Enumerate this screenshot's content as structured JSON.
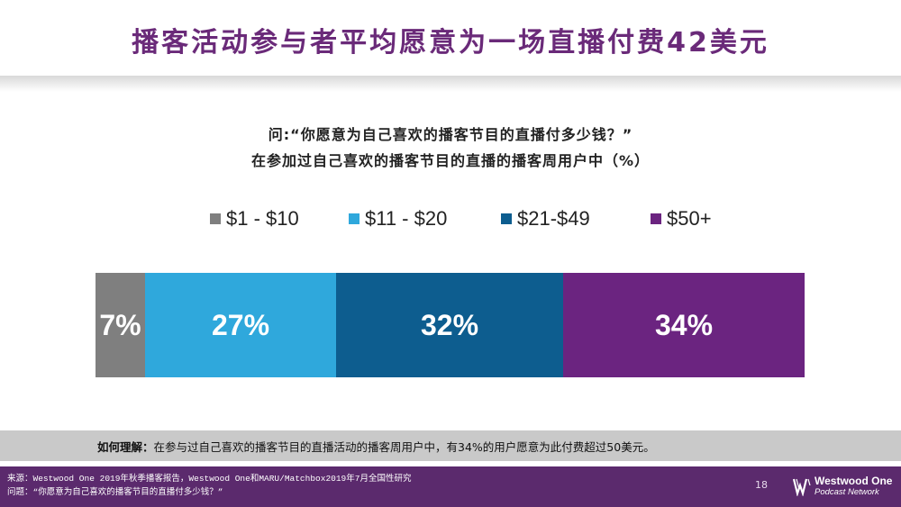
{
  "slide": {
    "title": "播客活动参与者平均愿意为一场直播付费42美元",
    "question_line1": "问:“你愿意为自己喜欢的播客节目的直播付多少钱？”",
    "question_line2": "在参加过自己喜欢的播客节目的直播的播客周用户中（%）"
  },
  "chart_data": {
    "type": "bar",
    "orientation": "horizontal-stacked-100",
    "categories": [
      "$1 - $10",
      "$11 - $20",
      "$21-$49",
      "$50+"
    ],
    "values": [
      7,
      27,
      32,
      34
    ],
    "labels": [
      "7%",
      "27%",
      "32%",
      "34%"
    ],
    "colors": [
      "#7f7f7f",
      "#2fa8dc",
      "#0d5d8f",
      "#6b2480"
    ],
    "legend_position": "top",
    "grid": false
  },
  "note": {
    "prefix": "如何理解：",
    "text": "在参与过自己喜欢的播客节目的直播活动的播客周用户中，有34%的用户愿意为此付费超过50美元。"
  },
  "footer": {
    "source_line1": "来源：Westwood One 2019年秋季播客报告，Westwood One和MARU/Matchbox2019年7月全国性研究",
    "source_line2": "问题：“你愿意为自己喜欢的播客节目的直播付多少钱？”",
    "page_number": "18",
    "logo_line1": "Westwood One",
    "logo_line2": "Podcast Network",
    "logo_icon": "westwood-one-w-mark",
    "background_color": "#5b2a6d"
  }
}
